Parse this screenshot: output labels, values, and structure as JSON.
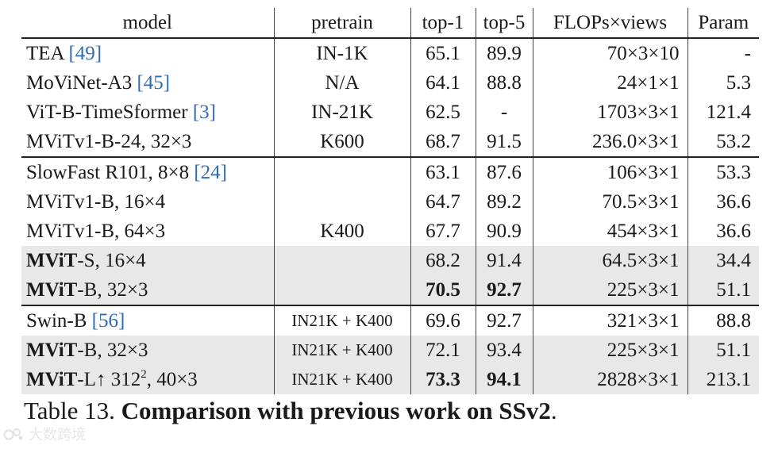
{
  "table": {
    "headers": {
      "model": "model",
      "pretrain": "pretrain",
      "top1": "top-1",
      "top5": "top-5",
      "flops": "FLOPs×views",
      "param": "Param"
    },
    "groups": [
      {
        "rows": [
          {
            "model": "TEA ",
            "cite": "[49]",
            "pretrain": "IN-1K",
            "top1": "65.1",
            "top5": "89.9",
            "flops": "70×3×10",
            "param": "-"
          },
          {
            "model": "MoViNet-A3 ",
            "cite": "[45]",
            "pretrain": "N/A",
            "top1": "64.1",
            "top5": "88.8",
            "flops": "24×1×1",
            "param": "5.3"
          },
          {
            "model": "ViT-B-TimeSformer ",
            "cite": "[3]",
            "pretrain": "IN-21K",
            "top1": "62.5",
            "top5": "-",
            "flops": "1703×3×1",
            "param": "121.4"
          },
          {
            "model": "MViTv1-B-24, 32×3",
            "pretrain": "K600",
            "top1": "68.7",
            "top5": "91.5",
            "flops": "236.0×3×1",
            "param": "53.2"
          }
        ]
      },
      {
        "shared_pretrain": "K400",
        "rows": [
          {
            "model": "SlowFast R101, 8×8 ",
            "cite": "[24]",
            "top1": "63.1",
            "top5": "87.6",
            "flops": "106×3×1",
            "param": "53.3"
          },
          {
            "model": "MViTv1-B, 16×4",
            "top1": "64.7",
            "top5": "89.2",
            "flops": "70.5×3×1",
            "param": "36.6"
          },
          {
            "model": "MViTv1-B, 64×3",
            "top1": "67.7",
            "top5": "90.9",
            "flops": "454×3×1",
            "param": "36.6"
          },
          {
            "model_bold": "MViT",
            "model": "-S, 16×4",
            "top1": "68.2",
            "top5": "91.4",
            "flops": "64.5×3×1",
            "param": "34.4",
            "shaded": true
          },
          {
            "model_bold": "MViT",
            "model": "-B, 32×3",
            "top1": "70.5",
            "top5": "92.7",
            "flops": "225×3×1",
            "param": "51.1",
            "shaded": true,
            "bold_top": true
          }
        ]
      },
      {
        "rows": [
          {
            "model": "Swin-B ",
            "cite": "[56]",
            "pretrain": "IN21K + K400",
            "top1": "69.6",
            "top5": "92.7",
            "flops": "321×3×1",
            "param": "88.8"
          },
          {
            "model_bold": "MViT",
            "model": "-B, 32×3",
            "pretrain": "IN21K + K400",
            "top1": "72.1",
            "top5": "93.4",
            "flops": "225×3×1",
            "param": "51.1",
            "shaded": true
          },
          {
            "model_bold": "MViT",
            "model": "-L↑ 312",
            "sup": "2",
            "model_tail": ", 40×3",
            "pretrain": "IN21K + K400",
            "top1": "73.3",
            "top5": "94.1",
            "flops": "2828×3×1",
            "param": "213.1",
            "shaded": true,
            "bold_top": true
          }
        ]
      }
    ]
  },
  "caption": {
    "label": "Table 13. ",
    "text": "Comparison with previous work on SSv2",
    "end": "."
  },
  "watermark": {
    "text": "大数跨境",
    "logo_icon": "ink-drop-logo-icon"
  },
  "colors": {
    "cite": "#2e6bb5",
    "shade": "#e8e8e8"
  }
}
